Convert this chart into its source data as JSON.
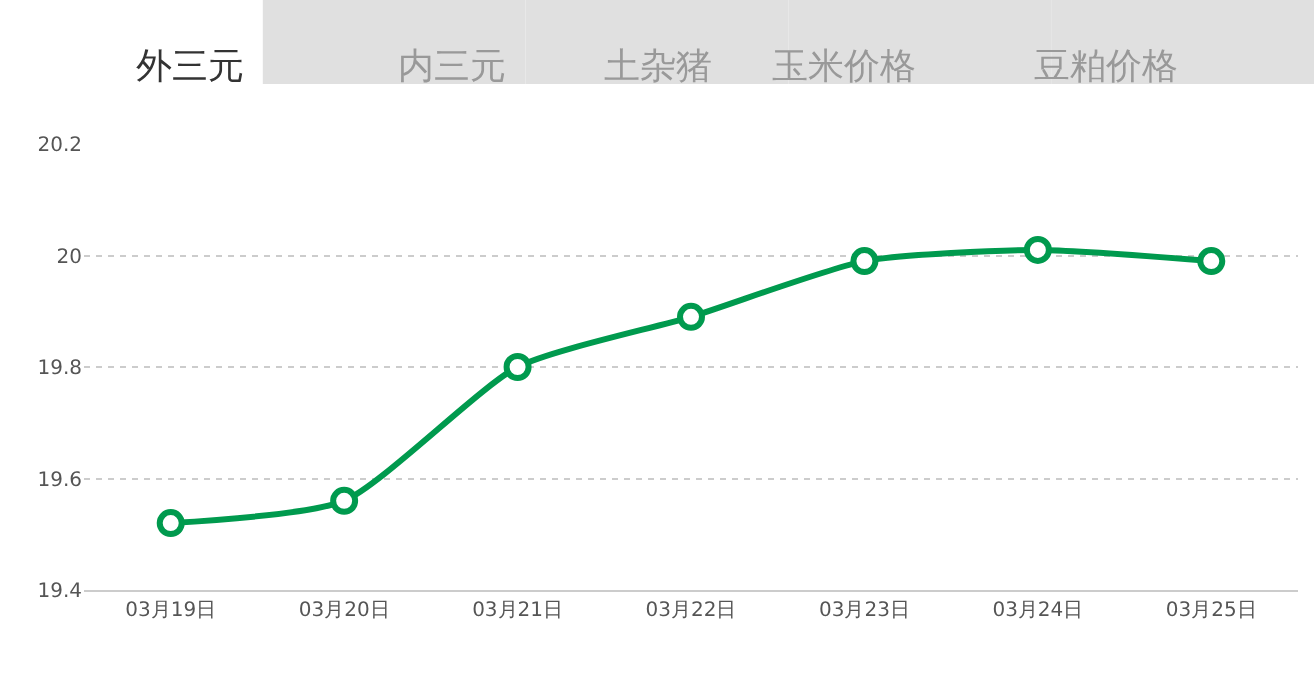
{
  "chart_data": {
    "type": "line",
    "annotations": [
      "外三元",
      "内三元",
      "土杂猪",
      "玉米价格",
      "豆粕价格"
    ],
    "categories": [
      "03月19日",
      "03月20日",
      "03月21日",
      "03月22日",
      "03月23日",
      "03月24日",
      "03月25日"
    ],
    "values": [
      19.52,
      19.56,
      19.8,
      19.89,
      19.99,
      20.01,
      19.99
    ],
    "color": "#009a4e",
    "ylim": [
      19.4,
      20.2
    ],
    "yticks": [
      19.4,
      19.6,
      19.8,
      20,
      20.2
    ],
    "grid": "y",
    "marker": "circle",
    "line_style": "solid"
  }
}
